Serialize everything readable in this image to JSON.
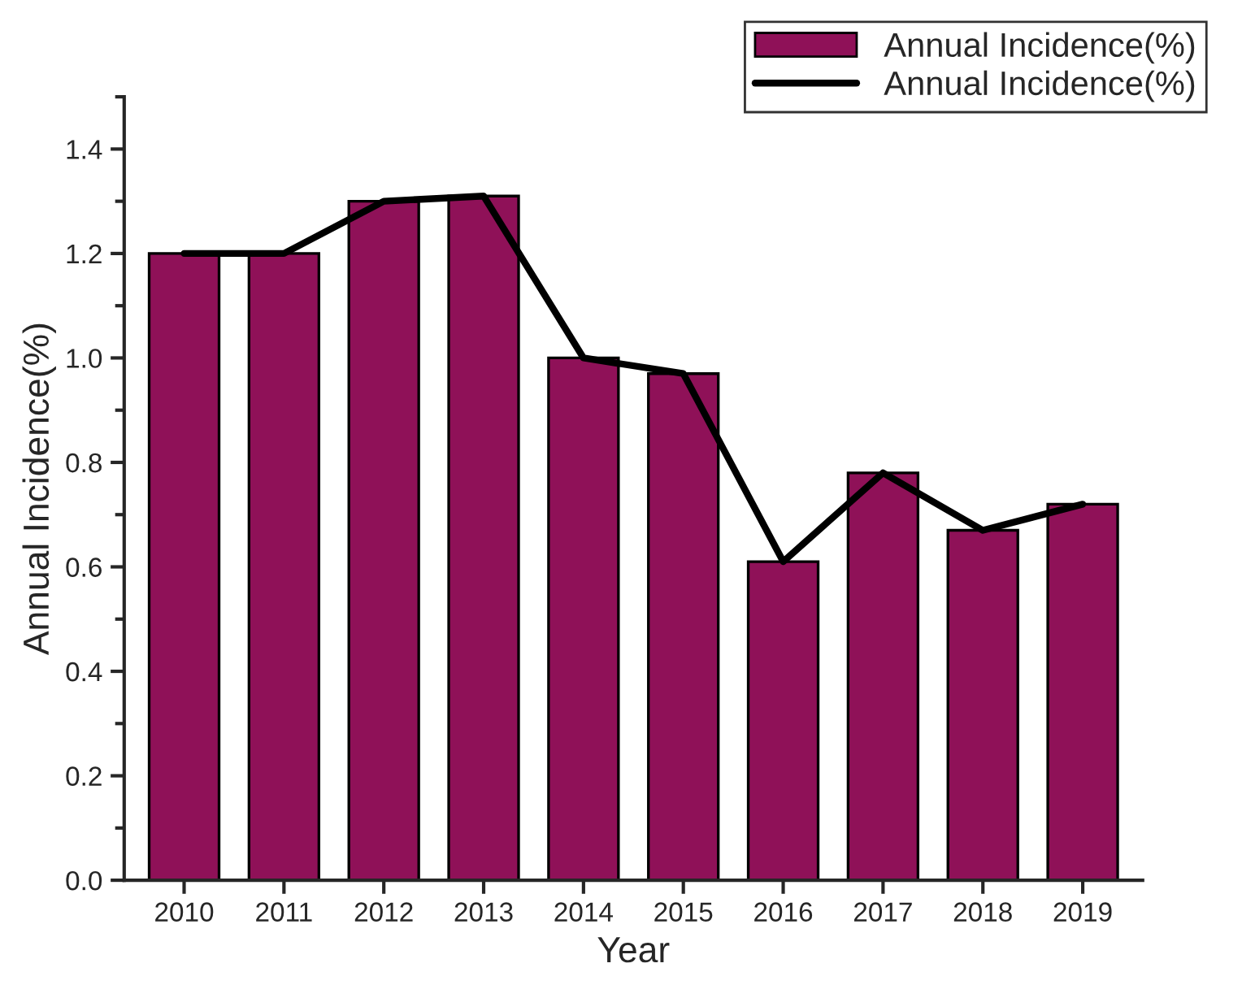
{
  "chart_data": {
    "type": "bar",
    "xlabel": "Year",
    "ylabel": "Annual Incidence(%)",
    "categories": [
      "2010",
      "2011",
      "2012",
      "2013",
      "2014",
      "2015",
      "2016",
      "2017",
      "2018",
      "2019"
    ],
    "series": [
      {
        "name": "Annual Incidence(%)",
        "color": "#8f1158",
        "values": [
          1.2,
          1.2,
          1.3,
          1.31,
          1.0,
          0.97,
          0.61,
          0.78,
          0.67,
          0.72
        ]
      },
      {
        "name": "Annual Incidence(%)",
        "type": "line",
        "color": "#000000",
        "values": [
          1.2,
          1.2,
          1.3,
          1.31,
          1.0,
          0.97,
          0.61,
          0.78,
          0.67,
          0.72
        ]
      }
    ],
    "ylim": [
      0,
      1.5
    ],
    "yticks": [
      {
        "value": 0,
        "label": "0.0"
      },
      {
        "value": 0.2,
        "label": "0.2"
      },
      {
        "value": 0.4,
        "label": "0.4"
      },
      {
        "value": 0.6,
        "label": "0.6"
      },
      {
        "value": 0.8,
        "label": "0.8"
      },
      {
        "value": 1.0,
        "label": "1.0"
      },
      {
        "value": 1.2,
        "label": "1.2"
      },
      {
        "value": 1.4,
        "label": "1.4"
      }
    ],
    "grid": false,
    "legend": "top right",
    "line_style": "solid",
    "marker": "none"
  }
}
